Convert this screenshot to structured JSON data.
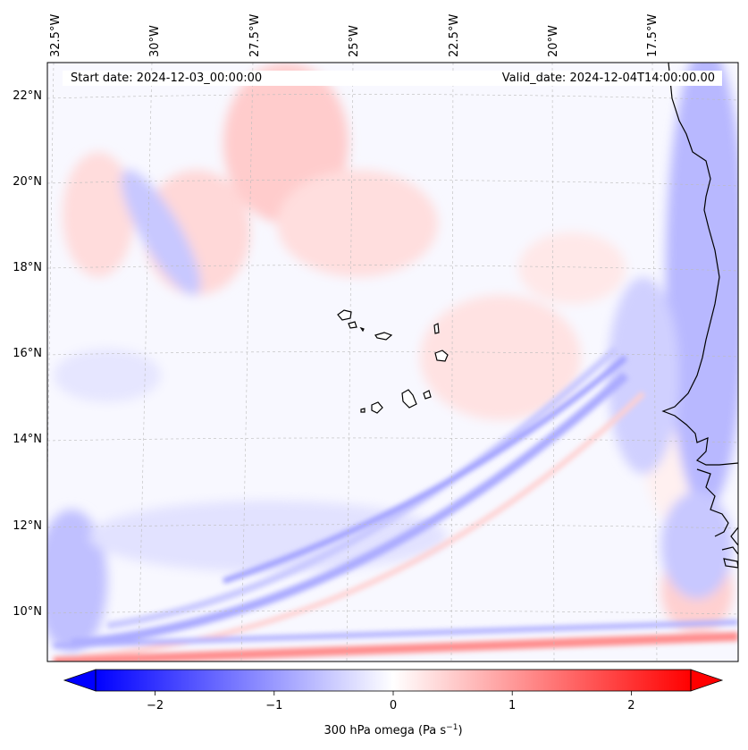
{
  "header": {
    "start_date": "Start date: 2024-12-03_00:00:00",
    "valid_date": "Valid_date: 2024-12-04T14:00:00.00"
  },
  "axes": {
    "lon_labels": [
      "32.5°W",
      "30°W",
      "27.5°W",
      "25°W",
      "22.5°W",
      "20°W",
      "17.5°W"
    ],
    "lat_labels": [
      "22°N",
      "20°N",
      "18°N",
      "16°N",
      "14°N",
      "12°N",
      "10°N"
    ]
  },
  "colorbar": {
    "label": "300 hPa omega (Pa s",
    "label_sup": "−1",
    "label_end": ")",
    "ticks": [
      {
        "value": -2,
        "text": "−2"
      },
      {
        "value": -1,
        "text": "−1"
      },
      {
        "value": 0,
        "text": "0"
      },
      {
        "value": 1,
        "text": "1"
      },
      {
        "value": 2,
        "text": "2"
      }
    ],
    "min": -2.5,
    "max": 2.5,
    "low_color": "#0000ff",
    "mid_color": "#ffffff",
    "high_color": "#ff0000"
  },
  "map_colors": {
    "coastline": "#000000",
    "gridline": "#bbbbbb"
  }
}
